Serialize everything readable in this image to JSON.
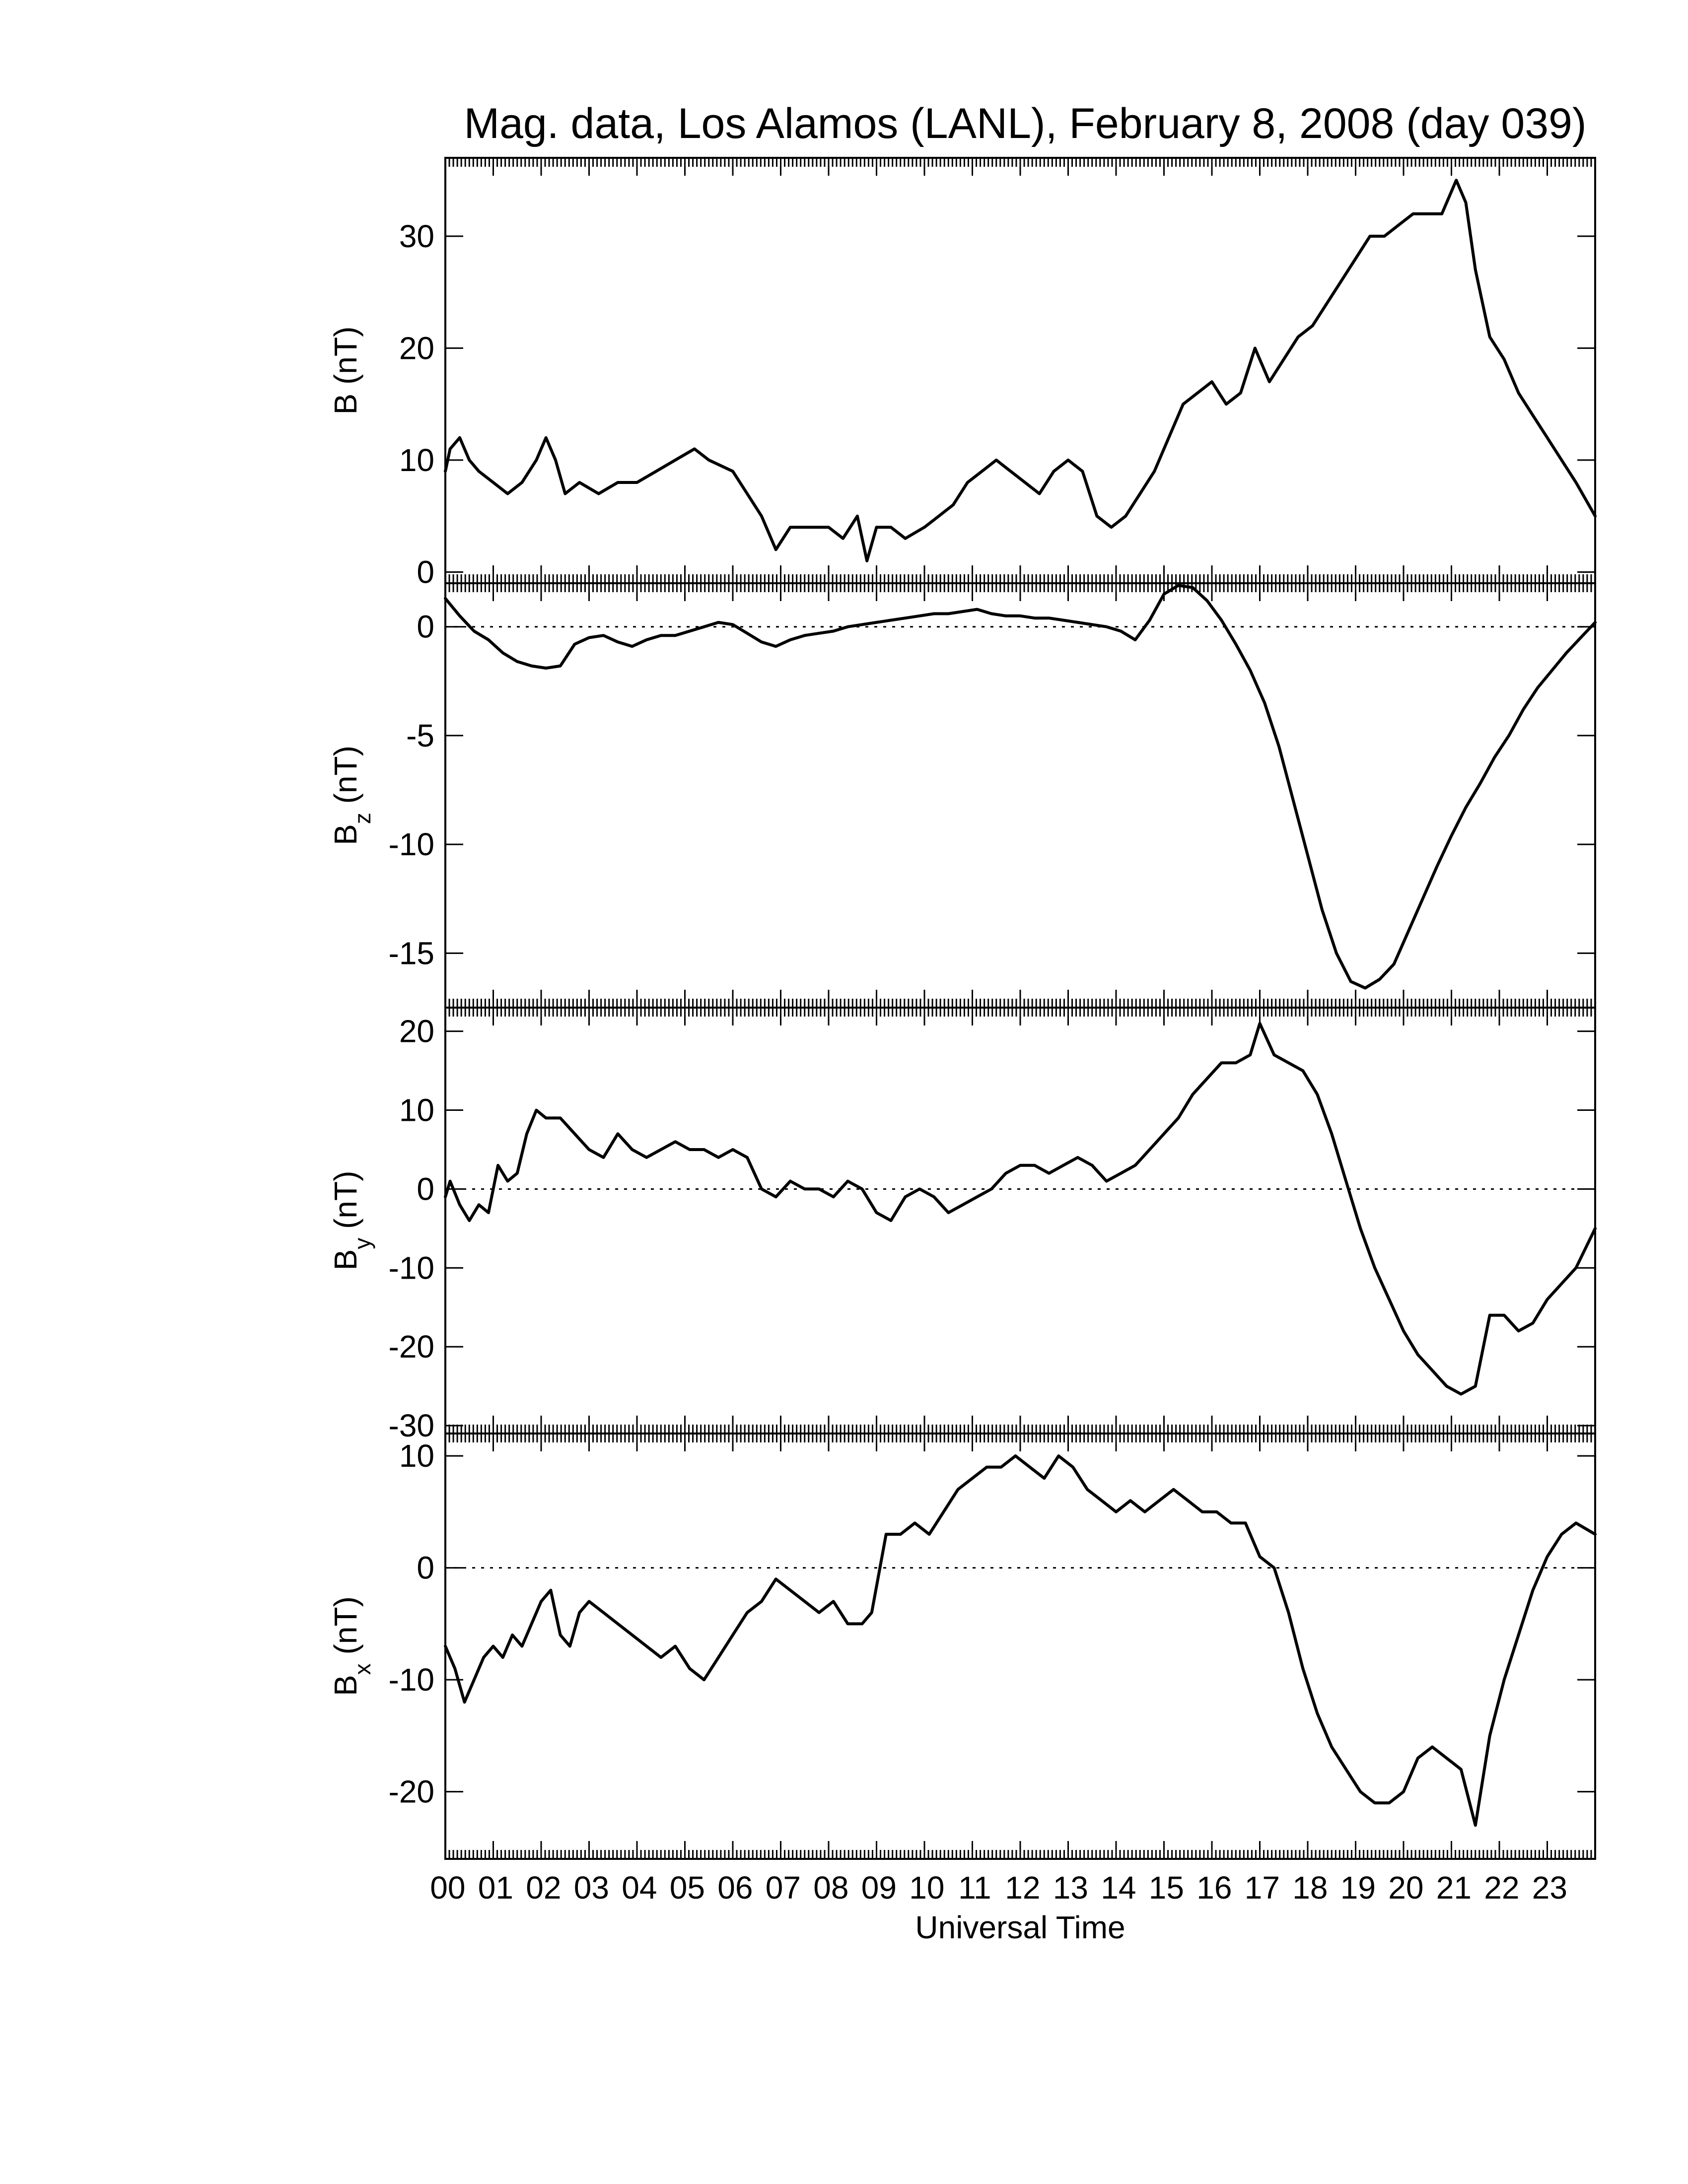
{
  "title": "Mag. data, Los Alamos (LANL), February 8, 2008 (day 039)",
  "chart_data": {
    "type": "line",
    "title": "Mag. data, Los Alamos (LANL), February 8, 2008 (day 039)",
    "xlabel": "Universal Time",
    "xlim": [
      0,
      24
    ],
    "x_tick_labels": [
      "00",
      "01",
      "02",
      "03",
      "04",
      "05",
      "06",
      "07",
      "08",
      "09",
      "10",
      "11",
      "12",
      "13",
      "14",
      "15",
      "16",
      "17",
      "18",
      "19",
      "20",
      "21",
      "22",
      "23"
    ],
    "grid": false,
    "panels": [
      {
        "name": "B",
        "ylabel": "B (nT)",
        "ylim": [
          -1,
          37
        ],
        "yticks": [
          0,
          10,
          20,
          30
        ],
        "zero_line": false,
        "series": [
          {
            "x": [
              0,
              0.1,
              0.3,
              0.5,
              0.7,
              1.0,
              1.3,
              1.6,
              1.9,
              2.1,
              2.3,
              2.5,
              2.8,
              3.2,
              3.6,
              4.0,
              4.4,
              4.8,
              5.2,
              5.5,
              6.0,
              6.3,
              6.6,
              6.9,
              7.2,
              7.6,
              8.0,
              8.3,
              8.6,
              8.8,
              9.0,
              9.3,
              9.6,
              10.0,
              10.3,
              10.6,
              10.9,
              11.2,
              11.5,
              11.8,
              12.1,
              12.4,
              12.7,
              13.0,
              13.3,
              13.6,
              13.9,
              14.2,
              14.5,
              14.8,
              15.1,
              15.4,
              15.7,
              16.0,
              16.3,
              16.6,
              16.9,
              17.2,
              17.5,
              17.8,
              18.1,
              18.4,
              18.7,
              19.0,
              19.3,
              19.6,
              19.9,
              20.2,
              20.5,
              20.8,
              21.1,
              21.3,
              21.5,
              21.8,
              22.1,
              22.4,
              22.7,
              23.0,
              23.3,
              23.6,
              24.0
            ],
            "values": [
              9,
              11,
              12,
              10,
              9,
              8,
              7,
              8,
              10,
              12,
              10,
              7,
              8,
              7,
              8,
              8,
              9,
              10,
              11,
              10,
              9,
              7,
              5,
              2,
              4,
              4,
              4,
              3,
              5,
              1,
              4,
              4,
              3,
              4,
              5,
              6,
              8,
              9,
              10,
              9,
              8,
              7,
              9,
              10,
              9,
              5,
              4,
              5,
              7,
              9,
              12,
              15,
              16,
              17,
              15,
              16,
              20,
              17,
              19,
              21,
              22,
              24,
              26,
              28,
              30,
              30,
              31,
              32,
              32,
              32,
              35,
              33,
              27,
              21,
              19,
              16,
              14,
              12,
              10,
              8,
              5
            ]
          }
        ]
      },
      {
        "name": "Bz",
        "ylabel": "B",
        "ylabel_subscript": "z",
        "ylabel_unit": "(nT)",
        "ylim": [
          -17.5,
          2
        ],
        "yticks": [
          0,
          -5,
          -10,
          -15
        ],
        "zero_line": true,
        "series": [
          {
            "x": [
              0,
              0.3,
              0.6,
              0.9,
              1.2,
              1.5,
              1.8,
              2.1,
              2.4,
              2.7,
              3.0,
              3.3,
              3.6,
              3.9,
              4.2,
              4.5,
              4.8,
              5.1,
              5.4,
              5.7,
              6.0,
              6.3,
              6.6,
              6.9,
              7.2,
              7.5,
              7.8,
              8.1,
              8.4,
              8.7,
              9.0,
              9.3,
              9.6,
              9.9,
              10.2,
              10.5,
              10.8,
              11.1,
              11.4,
              11.7,
              12.0,
              12.3,
              12.6,
              12.9,
              13.2,
              13.5,
              13.8,
              14.1,
              14.4,
              14.7,
              15.0,
              15.3,
              15.6,
              15.9,
              16.2,
              16.5,
              16.8,
              17.1,
              17.4,
              17.7,
              18.0,
              18.3,
              18.6,
              18.9,
              19.2,
              19.5,
              19.8,
              20.1,
              20.4,
              20.7,
              21.0,
              21.3,
              21.6,
              21.9,
              22.2,
              22.5,
              22.8,
              23.1,
              23.4,
              23.7,
              24.0
            ],
            "values": [
              1.3,
              0.5,
              -0.2,
              -0.6,
              -1.2,
              -1.6,
              -1.8,
              -1.9,
              -1.8,
              -0.8,
              -0.5,
              -0.4,
              -0.7,
              -0.9,
              -0.6,
              -0.4,
              -0.4,
              -0.2,
              0,
              0.2,
              0.1,
              -0.3,
              -0.7,
              -0.9,
              -0.6,
              -0.4,
              -0.3,
              -0.2,
              0,
              0.1,
              0.2,
              0.3,
              0.4,
              0.5,
              0.6,
              0.6,
              0.7,
              0.8,
              0.6,
              0.5,
              0.5,
              0.4,
              0.4,
              0.3,
              0.2,
              0.1,
              0,
              -0.2,
              -0.6,
              0.3,
              1.5,
              1.9,
              1.8,
              1.2,
              0.3,
              -0.8,
              -2,
              -3.5,
              -5.5,
              -8,
              -10.5,
              -13,
              -15,
              -16.3,
              -16.6,
              -16.2,
              -15.5,
              -14,
              -12.5,
              -11,
              -9.6,
              -8.3,
              -7.2,
              -6,
              -5,
              -3.8,
              -2.8,
              -2,
              -1.2,
              -0.5,
              0.2
            ]
          }
        ]
      },
      {
        "name": "By",
        "ylabel": "B",
        "ylabel_subscript": "y",
        "ylabel_unit": "(nT)",
        "ylim": [
          -31,
          23
        ],
        "yticks": [
          20,
          10,
          0,
          -10,
          -20,
          -30
        ],
        "zero_line": true,
        "series": [
          {
            "x": [
              0,
              0.1,
              0.3,
              0.5,
              0.7,
              0.9,
              1.1,
              1.3,
              1.5,
              1.7,
              1.9,
              2.1,
              2.4,
              2.7,
              3.0,
              3.3,
              3.6,
              3.9,
              4.2,
              4.5,
              4.8,
              5.1,
              5.4,
              5.7,
              6.0,
              6.3,
              6.6,
              6.9,
              7.2,
              7.5,
              7.8,
              8.1,
              8.4,
              8.7,
              9.0,
              9.3,
              9.6,
              9.9,
              10.2,
              10.5,
              10.8,
              11.1,
              11.4,
              11.7,
              12.0,
              12.3,
              12.6,
              12.9,
              13.2,
              13.5,
              13.8,
              14.1,
              14.4,
              14.7,
              15.0,
              15.3,
              15.6,
              15.9,
              16.2,
              16.5,
              16.8,
              17.0,
              17.3,
              17.6,
              17.9,
              18.2,
              18.5,
              18.8,
              19.1,
              19.4,
              19.7,
              20.0,
              20.3,
              20.6,
              20.9,
              21.2,
              21.5,
              21.8,
              22.1,
              22.4,
              22.7,
              23.0,
              23.3,
              23.6,
              24.0
            ],
            "values": [
              -1,
              1,
              -2,
              -4,
              -2,
              -3,
              3,
              1,
              2,
              7,
              10,
              9,
              9,
              7,
              5,
              4,
              7,
              5,
              4,
              5,
              6,
              5,
              5,
              4,
              5,
              4,
              0,
              -1,
              1,
              0,
              0,
              -1,
              1,
              0,
              -3,
              -4,
              -1,
              0,
              -1,
              -3,
              -2,
              -1,
              0,
              2,
              3,
              3,
              2,
              3,
              4,
              3,
              1,
              2,
              3,
              5,
              7,
              9,
              12,
              14,
              16,
              16,
              17,
              21,
              17,
              16,
              15,
              12,
              7,
              1,
              -5,
              -10,
              -14,
              -18,
              -21,
              -23,
              -25,
              -26,
              -25,
              -16,
              -16,
              -18,
              -17,
              -14,
              -12,
              -10,
              -5
            ]
          }
        ]
      },
      {
        "name": "Bx",
        "ylabel": "B",
        "ylabel_subscript": "x",
        "ylabel_unit": "(nT)",
        "ylim": [
          -26,
          12
        ],
        "yticks": [
          10,
          0,
          -10,
          -20
        ],
        "zero_line": true,
        "series": [
          {
            "x": [
              0,
              0.2,
              0.4,
              0.6,
              0.8,
              1.0,
              1.2,
              1.4,
              1.6,
              1.8,
              2.0,
              2.2,
              2.4,
              2.6,
              2.8,
              3.0,
              3.3,
              3.6,
              3.9,
              4.2,
              4.5,
              4.8,
              5.1,
              5.4,
              5.7,
              6.0,
              6.3,
              6.6,
              6.9,
              7.2,
              7.5,
              7.8,
              8.1,
              8.4,
              8.7,
              8.9,
              9.2,
              9.5,
              9.8,
              10.1,
              10.4,
              10.7,
              11.0,
              11.3,
              11.6,
              11.9,
              12.2,
              12.5,
              12.8,
              13.1,
              13.4,
              13.7,
              14.0,
              14.3,
              14.6,
              14.9,
              15.2,
              15.5,
              15.8,
              16.1,
              16.4,
              16.7,
              17.0,
              17.3,
              17.6,
              17.9,
              18.2,
              18.5,
              18.8,
              19.1,
              19.4,
              19.7,
              20.0,
              20.3,
              20.6,
              20.9,
              21.2,
              21.5,
              21.8,
              22.1,
              22.4,
              22.7,
              23.0,
              23.3,
              23.6,
              24.0
            ],
            "values": [
              -7,
              -9,
              -12,
              -10,
              -8,
              -7,
              -8,
              -6,
              -7,
              -5,
              -3,
              -2,
              -6,
              -7,
              -4,
              -3,
              -4,
              -5,
              -6,
              -7,
              -8,
              -7,
              -9,
              -10,
              -8,
              -6,
              -4,
              -3,
              -1,
              -2,
              -3,
              -4,
              -3,
              -5,
              -5,
              -4,
              3,
              3,
              4,
              3,
              5,
              7,
              8,
              9,
              9,
              10,
              9,
              8,
              10,
              9,
              7,
              6,
              5,
              6,
              5,
              6,
              7,
              6,
              5,
              5,
              4,
              4,
              1,
              0,
              -4,
              -9,
              -13,
              -16,
              -18,
              -20,
              -21,
              -21,
              -20,
              -17,
              -16,
              -17,
              -18,
              -23,
              -15,
              -10,
              -6,
              -2,
              1,
              3,
              4,
              3
            ]
          }
        ]
      }
    ]
  }
}
